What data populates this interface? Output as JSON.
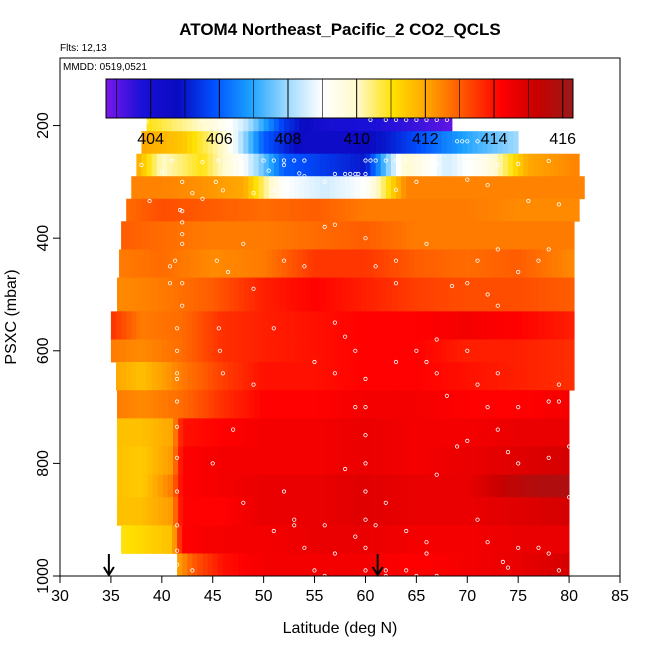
{
  "chart_data": {
    "type": "heatmap",
    "title": "ATOM4 Northeast_Pacific_2 CO2_QCLS",
    "flights_text": "Flts: 12,13",
    "dates_text": "MMDD: 0519,0521",
    "xlabel": "Latitude (deg N)",
    "ylabel": "PSXC (mbar)",
    "xlim": [
      30,
      85
    ],
    "ylim": [
      1000,
      80
    ],
    "x_ticks": [
      30,
      35,
      40,
      45,
      50,
      55,
      60,
      65,
      70,
      75,
      80,
      85
    ],
    "y_ticks": [
      200,
      400,
      600,
      800,
      1000
    ],
    "colorbar": {
      "range": [
        402.7,
        416.3
      ],
      "ticks": [
        404,
        406,
        408,
        410,
        412,
        414,
        416
      ],
      "colors": [
        "#7a18e8",
        "#1a10d8",
        "#0a0ac0",
        "#0050ff",
        "#1aa0ff",
        "#9ad8ff",
        "#ffffff",
        "#fffacc",
        "#ffe000",
        "#ffa000",
        "#ff5000",
        "#ff0000",
        "#c80000",
        "#9a1a1a"
      ]
    },
    "flight_arrows_lat": [
      34.8,
      61.2
    ],
    "layers": [
      {
        "pmin": 170,
        "pmax": 210,
        "lat_min": 38.5,
        "lat_max": 68.5,
        "x": [
          38.5,
          44,
          48,
          52,
          56,
          60,
          64,
          68.5
        ],
        "v": [
          411,
          410,
          408.5,
          405.5,
          404,
          403.8,
          403.5,
          403
        ]
      },
      {
        "pmin": 210,
        "pmax": 250,
        "lat_min": 38.0,
        "lat_max": 75.0,
        "x": [
          38,
          42,
          46,
          50,
          54,
          58,
          62,
          66,
          70,
          75
        ],
        "v": [
          412,
          411.5,
          410,
          406,
          404.5,
          404.5,
          405,
          406,
          407,
          408
        ]
      },
      {
        "pmin": 250,
        "pmax": 290,
        "lat_min": 37.5,
        "lat_max": 81.0,
        "x": [
          37.5,
          40,
          44,
          48,
          52,
          56,
          60,
          64,
          68,
          72,
          76,
          81
        ],
        "v": [
          412,
          410,
          411,
          409,
          406,
          405.5,
          405,
          410,
          408.5,
          409.5,
          412,
          412.5
        ]
      },
      {
        "pmin": 290,
        "pmax": 330,
        "lat_min": 37.0,
        "lat_max": 81.5,
        "x": [
          37,
          40,
          44,
          48,
          52,
          56,
          60,
          64,
          68,
          72,
          76,
          81.5
        ],
        "v": [
          412.5,
          412.5,
          412.3,
          412,
          409,
          408.5,
          409,
          412.5,
          412.5,
          412.5,
          412.5,
          412.5
        ]
      },
      {
        "pmin": 330,
        "pmax": 370,
        "lat_min": 36.5,
        "lat_max": 81.0,
        "x": [
          36.5,
          40,
          45,
          50,
          55,
          60,
          65,
          70,
          75,
          81
        ],
        "v": [
          412.8,
          413.2,
          413,
          412.8,
          413,
          412.6,
          412.6,
          412.6,
          412.4,
          412.4
        ]
      },
      {
        "pmin": 370,
        "pmax": 420,
        "lat_min": 36.0,
        "lat_max": 80.5,
        "x": [
          36,
          40,
          45,
          50,
          55,
          60,
          65,
          70,
          75,
          80.5
        ],
        "v": [
          413,
          412.8,
          412.6,
          412.6,
          412.8,
          413,
          412.6,
          412.6,
          412.6,
          412.6
        ]
      },
      {
        "pmin": 420,
        "pmax": 470,
        "lat_min": 35.8,
        "lat_max": 80.5,
        "x": [
          35.8,
          40,
          45,
          50,
          55,
          60,
          65,
          70,
          75,
          80.5
        ],
        "v": [
          412.6,
          412.8,
          412.4,
          412.6,
          413.5,
          413.5,
          413,
          412.8,
          413,
          412.4
        ]
      },
      {
        "pmin": 470,
        "pmax": 530,
        "lat_min": 35.6,
        "lat_max": 80.5,
        "x": [
          35.6,
          40,
          45,
          50,
          55,
          60,
          65,
          70,
          75,
          80.5
        ],
        "v": [
          412.4,
          412.6,
          413,
          413.8,
          414.2,
          413.8,
          413.4,
          413.2,
          413.2,
          413
        ]
      },
      {
        "pmin": 530,
        "pmax": 580,
        "lat_min": 35.0,
        "lat_max": 80.5,
        "x": [
          35,
          38,
          42,
          46,
          50,
          55,
          60,
          65,
          70,
          75,
          80.5
        ],
        "v": [
          413.6,
          412.6,
          412.8,
          413.6,
          413.8,
          414,
          414.2,
          414.2,
          414.4,
          414.2,
          413.8
        ]
      },
      {
        "pmin": 580,
        "pmax": 620,
        "lat_min": 35.0,
        "lat_max": 80.5,
        "x": [
          35,
          38,
          42,
          46,
          50,
          55,
          60,
          65,
          70,
          75,
          80.5
        ],
        "v": [
          412.6,
          412.4,
          412.8,
          413.6,
          413.8,
          414,
          414.2,
          414.2,
          413.8,
          413.8,
          413.6
        ]
      },
      {
        "pmin": 620,
        "pmax": 670,
        "lat_min": 35.5,
        "lat_max": 80.5,
        "x": [
          35.5,
          38,
          42,
          46,
          50,
          55,
          60,
          65,
          70,
          75,
          80.5
        ],
        "v": [
          412,
          411.6,
          412.6,
          413.4,
          414,
          414,
          414.2,
          414.2,
          414,
          413.8,
          413.6
        ]
      },
      {
        "pmin": 670,
        "pmax": 720,
        "lat_min": 35.6,
        "lat_max": 80.0,
        "x": [
          35.6,
          38,
          42,
          46,
          50,
          55,
          60,
          65,
          70,
          75,
          80
        ],
        "v": [
          412.6,
          412.4,
          412.8,
          413.6,
          414.2,
          414.2,
          414.4,
          414.4,
          414.2,
          414.2,
          414.4
        ]
      },
      {
        "pmin": 720,
        "pmax": 770,
        "lat_min": 35.6,
        "lat_max": 80.0,
        "x": [
          35.6,
          38,
          41,
          42,
          46,
          50,
          55,
          60,
          65,
          70,
          75,
          80
        ],
        "v": [
          411.6,
          411.6,
          412,
          414,
          414.2,
          414.4,
          414.4,
          414.6,
          414.4,
          414.4,
          414.6,
          414.6
        ]
      },
      {
        "pmin": 770,
        "pmax": 820,
        "lat_min": 35.6,
        "lat_max": 80.0,
        "x": [
          35.6,
          38,
          41,
          42,
          46,
          50,
          55,
          60,
          65,
          70,
          75,
          80
        ],
        "v": [
          411.6,
          411.4,
          412.2,
          414.2,
          414.4,
          414.4,
          414.4,
          414.6,
          414.4,
          414.6,
          414.8,
          415
        ]
      },
      {
        "pmin": 820,
        "pmax": 860,
        "lat_min": 35.6,
        "lat_max": 80.0,
        "x": [
          35.6,
          38,
          41,
          42,
          46,
          50,
          55,
          60,
          65,
          70,
          74,
          77,
          80
        ],
        "v": [
          411.6,
          411.4,
          412.6,
          414.2,
          414.4,
          414.6,
          414.6,
          414.8,
          414.6,
          414.6,
          415.4,
          415.8,
          415.8
        ]
      },
      {
        "pmin": 860,
        "pmax": 910,
        "lat_min": 35.6,
        "lat_max": 80.0,
        "x": [
          35.6,
          38,
          41,
          42,
          46,
          50,
          55,
          60,
          65,
          70,
          75,
          80
        ],
        "v": [
          411.6,
          411.6,
          412.2,
          414.2,
          414.2,
          414.6,
          414.6,
          414.8,
          414.6,
          414.6,
          414.8,
          415
        ]
      },
      {
        "pmin": 910,
        "pmax": 960,
        "lat_min": 36.0,
        "lat_max": 80.0,
        "x": [
          36,
          38,
          41,
          42,
          46,
          50,
          55,
          60,
          65,
          70,
          75,
          80
        ],
        "v": [
          411,
          411.2,
          411.6,
          414.2,
          414.4,
          414.4,
          414.6,
          414.6,
          414.4,
          414.4,
          414.6,
          414.6
        ]
      },
      {
        "pmin": 960,
        "pmax": 1000,
        "lat_min": 41.5,
        "lat_max": 80.0,
        "x": [
          41.5,
          43,
          46,
          50,
          55,
          60,
          65,
          70,
          75,
          80
        ],
        "v": [
          412,
          413,
          414,
          414.4,
          414.4,
          414.4,
          414.2,
          414.4,
          414.6,
          415
        ]
      }
    ],
    "samples": [
      [
        38.5,
        193
      ],
      [
        44,
        190
      ],
      [
        60.5,
        190
      ],
      [
        62,
        190
      ],
      [
        63,
        190
      ],
      [
        64,
        190
      ],
      [
        65,
        190
      ],
      [
        66,
        190
      ],
      [
        67,
        190
      ],
      [
        68,
        190
      ],
      [
        69,
        228
      ],
      [
        69.5,
        228
      ],
      [
        70,
        228
      ],
      [
        71,
        228
      ],
      [
        50,
        262
      ],
      [
        51,
        262
      ],
      [
        52,
        262
      ],
      [
        53,
        262
      ],
      [
        54,
        262
      ],
      [
        60,
        262
      ],
      [
        60.5,
        262
      ],
      [
        61,
        262
      ],
      [
        62,
        262
      ],
      [
        63,
        262
      ],
      [
        64,
        262
      ],
      [
        57,
        286
      ],
      [
        58,
        286
      ],
      [
        58.5,
        286
      ],
      [
        59,
        286
      ],
      [
        59.3,
        286
      ],
      [
        60,
        286
      ],
      [
        52,
        270
      ],
      [
        50.5,
        280
      ],
      [
        53.5,
        285
      ],
      [
        54,
        290
      ],
      [
        41,
        262
      ],
      [
        44,
        265
      ],
      [
        45.5,
        262
      ],
      [
        47,
        263
      ],
      [
        65,
        262
      ],
      [
        67,
        268
      ],
      [
        73,
        270
      ],
      [
        75,
        268
      ],
      [
        78,
        263
      ],
      [
        38,
        270
      ],
      [
        40,
        283
      ],
      [
        42,
        300
      ],
      [
        43,
        320
      ],
      [
        44,
        330
      ],
      [
        45.3,
        300
      ],
      [
        46,
        315
      ],
      [
        49,
        320
      ],
      [
        51,
        314
      ],
      [
        56,
        300
      ],
      [
        59,
        320
      ],
      [
        63,
        314
      ],
      [
        65,
        300
      ],
      [
        70,
        296
      ],
      [
        72,
        306
      ],
      [
        76,
        334
      ],
      [
        79,
        340
      ],
      [
        38.8,
        334
      ],
      [
        41.8,
        350
      ],
      [
        42,
        352
      ],
      [
        42,
        372
      ],
      [
        42,
        393
      ],
      [
        42,
        410
      ],
      [
        41.3,
        440
      ],
      [
        42,
        480
      ],
      [
        42,
        520
      ],
      [
        41.5,
        560
      ],
      [
        41.5,
        600
      ],
      [
        41.5,
        640
      ],
      [
        41.5,
        650
      ],
      [
        41.5,
        690
      ],
      [
        41.5,
        735
      ],
      [
        41.5,
        790
      ],
      [
        41.5,
        850
      ],
      [
        41.5,
        910
      ],
      [
        41.5,
        955
      ],
      [
        41.5,
        980
      ],
      [
        40.8,
        450
      ],
      [
        40.8,
        480
      ],
      [
        45.4,
        440
      ],
      [
        48,
        410
      ],
      [
        52,
        440
      ],
      [
        54,
        450
      ],
      [
        56,
        380
      ],
      [
        57,
        376
      ],
      [
        60,
        400
      ],
      [
        61,
        450
      ],
      [
        63,
        480
      ],
      [
        66,
        410
      ],
      [
        68.5,
        485
      ],
      [
        70,
        480
      ],
      [
        71,
        440
      ],
      [
        73,
        420
      ],
      [
        75,
        460
      ],
      [
        77,
        440
      ],
      [
        78,
        420
      ],
      [
        72,
        500
      ],
      [
        73,
        520
      ],
      [
        57,
        550
      ],
      [
        58,
        575
      ],
      [
        59,
        600
      ],
      [
        60,
        650
      ],
      [
        60,
        700
      ],
      [
        60,
        750
      ],
      [
        60,
        800
      ],
      [
        60,
        850
      ],
      [
        60,
        900
      ],
      [
        60,
        950
      ],
      [
        60,
        990
      ],
      [
        58,
        810
      ],
      [
        56,
        910
      ],
      [
        49,
        660
      ],
      [
        47,
        740
      ],
      [
        45,
        800
      ],
      [
        43,
        990
      ],
      [
        52,
        850
      ],
      [
        53,
        910
      ],
      [
        54,
        950
      ],
      [
        55,
        990
      ],
      [
        62,
        990
      ],
      [
        64,
        990
      ],
      [
        63,
        440
      ],
      [
        67,
        580
      ],
      [
        70,
        600
      ],
      [
        71,
        660
      ],
      [
        72,
        700
      ],
      [
        73,
        740
      ],
      [
        74,
        780
      ],
      [
        75,
        800
      ],
      [
        78,
        690
      ],
      [
        78,
        790
      ],
      [
        80,
        770
      ],
      [
        80,
        860
      ],
      [
        71,
        900
      ],
      [
        72,
        940
      ],
      [
        75,
        950
      ],
      [
        77,
        950
      ],
      [
        78,
        960
      ],
      [
        79,
        990
      ],
      [
        74,
        985
      ],
      [
        73.5,
        975
      ],
      [
        66,
        960
      ],
      [
        67,
        820
      ],
      [
        69,
        770
      ],
      [
        70,
        760
      ],
      [
        68,
        680
      ],
      [
        45.6,
        560
      ],
      [
        45.7,
        600
      ],
      [
        46,
        640
      ],
      [
        46.5,
        460
      ],
      [
        49,
        490
      ],
      [
        51,
        560
      ],
      [
        55,
        620
      ],
      [
        57,
        640
      ],
      [
        59,
        700
      ],
      [
        63,
        620
      ],
      [
        65,
        600
      ],
      [
        66,
        620
      ],
      [
        67,
        640
      ],
      [
        73,
        640
      ],
      [
        75,
        700
      ],
      [
        79,
        660
      ],
      [
        79,
        690
      ],
      [
        64,
        920
      ],
      [
        66,
        940
      ],
      [
        62,
        870
      ],
      [
        61,
        910
      ],
      [
        59,
        930
      ],
      [
        57,
        960
      ],
      [
        56,
        1000
      ],
      [
        62,
        1000
      ],
      [
        65,
        1000
      ],
      [
        67,
        1000
      ],
      [
        48,
        870
      ],
      [
        51,
        920
      ],
      [
        53,
        900
      ]
    ]
  }
}
